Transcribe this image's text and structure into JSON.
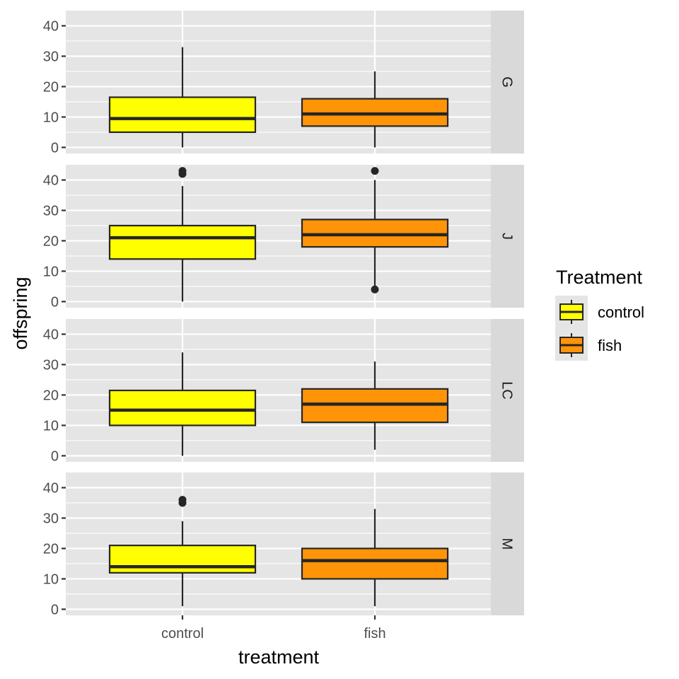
{
  "chart_data": {
    "type": "boxplot",
    "title": "",
    "xlabel": "treatment",
    "ylabel": "offspring",
    "categories": [
      "control",
      "fish"
    ],
    "y_ticks": [
      0,
      10,
      20,
      30,
      40
    ],
    "ylim": [
      -2,
      45
    ],
    "grid": true,
    "facet_variable": "row",
    "legend": {
      "title": "Treatment",
      "position": "right",
      "entries": [
        {
          "label": "control",
          "color": "#FFFF00"
        },
        {
          "label": "fish",
          "color": "#FF9408"
        }
      ]
    },
    "facets": [
      {
        "label": "G",
        "boxes": [
          {
            "category": "control",
            "whisker_low": 0,
            "q1": 5,
            "median": 9.5,
            "q3": 16.5,
            "whisker_high": 33,
            "outliers": []
          },
          {
            "category": "fish",
            "whisker_low": 0,
            "q1": 7,
            "median": 11,
            "q3": 16,
            "whisker_high": 25,
            "outliers": []
          }
        ]
      },
      {
        "label": "J",
        "boxes": [
          {
            "category": "control",
            "whisker_low": 0,
            "q1": 14,
            "median": 21,
            "q3": 25,
            "whisker_high": 38,
            "outliers": [
              42,
              43
            ]
          },
          {
            "category": "fish",
            "whisker_low": 4,
            "q1": 18,
            "median": 22,
            "q3": 27,
            "whisker_high": 40,
            "outliers": [
              4,
              43
            ]
          }
        ]
      },
      {
        "label": "LC",
        "boxes": [
          {
            "category": "control",
            "whisker_low": 0,
            "q1": 10,
            "median": 15,
            "q3": 21.5,
            "whisker_high": 34,
            "outliers": []
          },
          {
            "category": "fish",
            "whisker_low": 2,
            "q1": 11,
            "median": 17,
            "q3": 22,
            "whisker_high": 31,
            "outliers": []
          }
        ]
      },
      {
        "label": "M",
        "boxes": [
          {
            "category": "control",
            "whisker_low": 1,
            "q1": 12,
            "median": 14,
            "q3": 21,
            "whisker_high": 29,
            "outliers": [
              35,
              36
            ]
          },
          {
            "category": "fish",
            "whisker_low": 1,
            "q1": 10,
            "median": 16,
            "q3": 20,
            "whisker_high": 33,
            "outliers": []
          }
        ]
      }
    ],
    "colors": {
      "panel_background": "#E5E5E5",
      "grid": "#FFFFFF",
      "strip_background": "#D9D9D9",
      "box_outline": "#262626",
      "control": "#FFFF00",
      "fish": "#FF9408"
    }
  }
}
